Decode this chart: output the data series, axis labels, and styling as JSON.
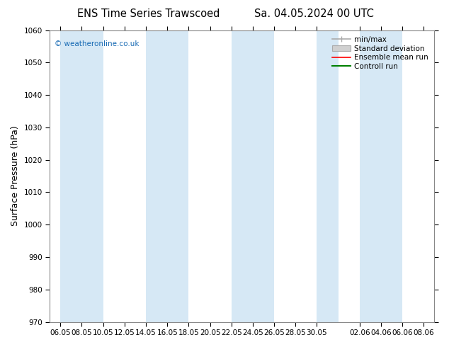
{
  "title_left": "ENS Time Series Trawscoed",
  "title_right": "Sa. 04.05.2024 00 UTC",
  "ylabel": "Surface Pressure (hPa)",
  "ylim": [
    970,
    1060
  ],
  "yticks": [
    970,
    980,
    990,
    1000,
    1010,
    1020,
    1030,
    1040,
    1050,
    1060
  ],
  "xtick_labels": [
    "06.05",
    "08.05",
    "10.05",
    "12.05",
    "14.05",
    "16.05",
    "18.05",
    "20.05",
    "22.05",
    "24.05",
    "26.05",
    "28.05",
    "30.05",
    "02.06",
    "04.06",
    "06.06",
    "08.06"
  ],
  "copyright_text": "© weatheronline.co.uk",
  "legend_labels": [
    "min/max",
    "Standard deviation",
    "Ensemble mean run",
    "Controll run"
  ],
  "legend_colors": [
    "#aaaaaa",
    "#cccccc",
    "#ff0000",
    "#008000"
  ],
  "band_color": "#d6e8f5",
  "background_color": "#ffffff",
  "plot_bg_color": "#ddeeff"
}
